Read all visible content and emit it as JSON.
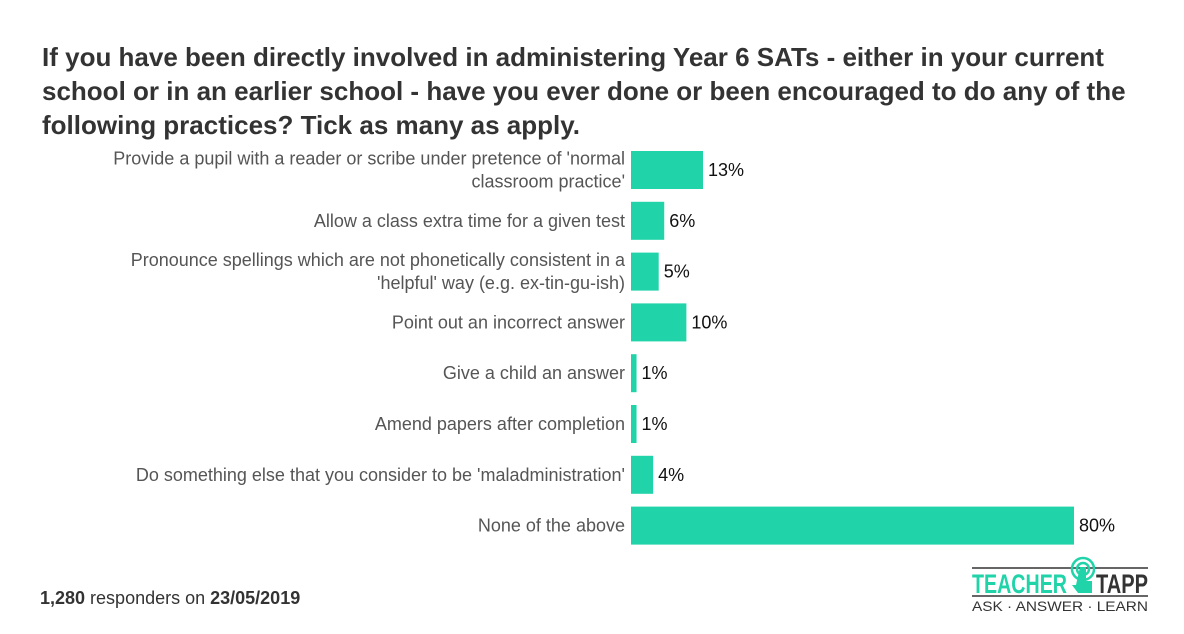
{
  "chart_data": {
    "type": "bar",
    "orientation": "horizontal",
    "title": "If you have been directly involved in administering Year 6 SATs - either in your current school or in an earlier school - have you ever done or been encouraged to do any of the following practices? Tick as many as apply.",
    "categories": [
      [
        "Provide a pupil with a reader or scribe under pretence of 'normal",
        "classroom practice'"
      ],
      [
        "Allow a class extra time for a given test"
      ],
      [
        "Pronounce spellings which are not phonetically consistent in a",
        "'helpful' way (e.g. ex-tin-gu-ish)"
      ],
      [
        "Point out an incorrect answer"
      ],
      [
        "Give a child an answer"
      ],
      [
        "Amend papers after completion"
      ],
      [
        "Do something else that you consider to be 'maladministration'"
      ],
      [
        "None of the above"
      ]
    ],
    "values": [
      13,
      6,
      5,
      10,
      1,
      1,
      4,
      80
    ],
    "value_labels": [
      "13%",
      "6%",
      "5%",
      "10%",
      "1%",
      "1%",
      "4%",
      "80%"
    ],
    "unit": "%",
    "xlim": [
      0,
      80
    ],
    "bar_color": "#20d3a8",
    "grid": false,
    "legend": "none"
  },
  "footer": {
    "count": "1,280",
    "middle": " responders on ",
    "date": "23/05/2019"
  },
  "logo": {
    "word1": "TEACHER",
    "word2": "TAPP",
    "tagline": "ASK · ANSWER · LEARN",
    "green": "#20d3a8",
    "dark": "#333333"
  }
}
